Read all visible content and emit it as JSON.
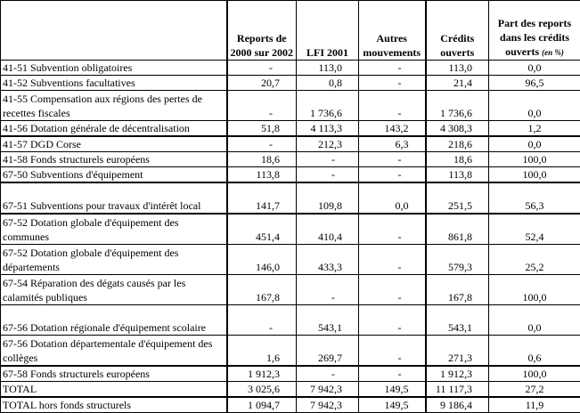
{
  "headers": [
    "",
    "Reports de 2000 sur 2002",
    "LFI 2001",
    "Autres mouvements",
    "Crédits ouverts",
    "Part des reports dans les crédits ouverts"
  ],
  "header_unit": "(en %)",
  "rows": [
    {
      "label": "41-51 Subvention obligatoires",
      "v": [
        "-",
        "113,0",
        "-",
        "113,0",
        "0,0"
      ],
      "h": 1
    },
    {
      "label": "41-52 Subventions facultatives",
      "v": [
        "20,7",
        "0,8",
        "-",
        "21,4",
        "96,5"
      ],
      "h": 1
    },
    {
      "label": "41-55 Compensation aux régions des pertes de recettes fiscales",
      "v": [
        "-",
        "1 736,6",
        "-",
        "1 736,6",
        "0,0"
      ],
      "h": 2
    },
    {
      "label": "41-56 Dotation générale de décentralisation",
      "v": [
        "51,8",
        "4 113,3",
        "143,2",
        "4 308,3",
        "1,2"
      ],
      "h": 1
    },
    {
      "label": "41-57 DGD Corse",
      "v": [
        "-",
        "212,3",
        "6,3",
        "218,6",
        "0,0"
      ],
      "h": 1
    },
    {
      "label": "41-58 Fonds structurels européens",
      "v": [
        "18,6",
        "-",
        "-",
        "18,6",
        "100,0"
      ],
      "h": 1
    },
    {
      "label": "67-50 Subventions d'équipement",
      "v": [
        "113,8",
        "-",
        "-",
        "113,8",
        "100,0"
      ],
      "h": 1
    },
    {
      "label": "67-51 Subventions pour travaux d'intérêt local",
      "v": [
        "141,7",
        "109,8",
        "0,0",
        "251,5",
        "56,3"
      ],
      "h": 2
    },
    {
      "label": "67-52 Dotation globale d'équipement des communes",
      "v": [
        "451,4",
        "410,4",
        "-",
        "861,8",
        "52,4"
      ],
      "h": 2
    },
    {
      "label": " 67-52 Dotation globale d'équipement des départements",
      "v": [
        "146,0",
        "433,3",
        "-",
        "579,3",
        "25,2"
      ],
      "h": 2
    },
    {
      "label": "67-54 Réparation des dégats causés par les calamités publiques",
      "v": [
        "167,8",
        "-",
        "-",
        "167,8",
        "100,0"
      ],
      "h": 2
    },
    {
      "label": "67-56 Dotation régionale d'équipement scolaire",
      "v": [
        "-",
        "543,1",
        "-",
        "543,1",
        "0,0"
      ],
      "h": 2
    },
    {
      "label": "67-56 Dotation départementale d'équipement des collèges",
      "v": [
        "1,6",
        "269,7",
        "-",
        "271,3",
        "0,6"
      ],
      "h": 2
    },
    {
      "label": "67-58 Fonds structurels européens",
      "v": [
        "1 912,3",
        "-",
        "-",
        "1 912,3",
        "100,0"
      ],
      "h": 1
    },
    {
      "label": "TOTAL",
      "v": [
        "3 025,6",
        "7 942,3",
        "149,5",
        "11 117,3",
        "27,2"
      ],
      "h": 1
    },
    {
      "label": "TOTAL hors fonds structurels",
      "v": [
        "1 094,7",
        "7 942,3",
        "149,5",
        "9 186,4",
        "11,9"
      ],
      "h": 1
    }
  ]
}
